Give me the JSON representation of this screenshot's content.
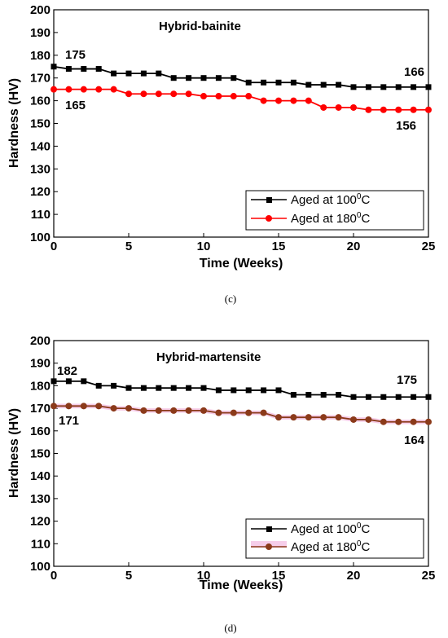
{
  "chart_data": [
    {
      "type": "line",
      "title": "Hybrid-bainite",
      "caption": "(c)",
      "xlabel": "Time (Weeks)",
      "ylabel": "Hardness (HV)",
      "xlim": [
        0,
        25
      ],
      "ylim": [
        100,
        200
      ],
      "xticks": [
        "0",
        "5",
        "10",
        "15",
        "20",
        "25"
      ],
      "yticks": [
        "100",
        "110",
        "120",
        "130",
        "140",
        "150",
        "160",
        "170",
        "180",
        "190",
        "200"
      ],
      "x": [
        0,
        1,
        2,
        3,
        4,
        5,
        6,
        7,
        8,
        9,
        10,
        11,
        12,
        13,
        14,
        15,
        16,
        17,
        18,
        19,
        20,
        21,
        22,
        23,
        24,
        25
      ],
      "series": [
        {
          "name": "Aged at 100°C",
          "legend_base": "Aged at 100",
          "legend_sup": "0",
          "legend_tail": "C",
          "color": "#000000",
          "marker": "square",
          "values": [
            175,
            174,
            174,
            174,
            172,
            172,
            172,
            172,
            170,
            170,
            170,
            170,
            170,
            168,
            168,
            168,
            168,
            167,
            167,
            167,
            166,
            166,
            166,
            166,
            166,
            166
          ]
        },
        {
          "name": "Aged at 180°C",
          "legend_base": "Aged at 180",
          "legend_sup": "0",
          "legend_tail": "C",
          "color": "#ff0000",
          "marker": "circle",
          "values": [
            165,
            165,
            165,
            165,
            165,
            163,
            163,
            163,
            163,
            163,
            162,
            162,
            162,
            162,
            160,
            160,
            160,
            160,
            157,
            157,
            157,
            156,
            156,
            156,
            156,
            156
          ]
        }
      ],
      "annotations": [
        "175",
        "165",
        "166",
        "156"
      ],
      "legend_position": "bottom-right",
      "grid": false
    },
    {
      "type": "line",
      "title": "Hybrid-martensite",
      "caption": "(d)",
      "xlabel": "Time (Weeks)",
      "ylabel": "Hardness (HV)",
      "xlim": [
        0,
        25
      ],
      "ylim": [
        100,
        200
      ],
      "xticks": [
        "0",
        "5",
        "10",
        "15",
        "20",
        "25"
      ],
      "yticks": [
        "100",
        "110",
        "120",
        "130",
        "140",
        "150",
        "160",
        "170",
        "180",
        "190",
        "200"
      ],
      "x": [
        0,
        1,
        2,
        3,
        4,
        5,
        6,
        7,
        8,
        9,
        10,
        11,
        12,
        13,
        14,
        15,
        16,
        17,
        18,
        19,
        20,
        21,
        22,
        23,
        24,
        25
      ],
      "series": [
        {
          "name": "Aged at 100°C",
          "legend_base": "Aged at 100",
          "legend_sup": "0",
          "legend_tail": "C",
          "color": "#000000",
          "marker": "square",
          "values": [
            182,
            182,
            182,
            180,
            180,
            179,
            179,
            179,
            179,
            179,
            179,
            178,
            178,
            178,
            178,
            178,
            176,
            176,
            176,
            176,
            175,
            175,
            175,
            175,
            175,
            175
          ]
        },
        {
          "name": "Aged at 180°C",
          "legend_base": "Aged at 180",
          "legend_sup": "0",
          "legend_tail": "C",
          "color": "#8b3a1a",
          "marker": "circle",
          "band_color": "#f2b8e0",
          "values": [
            171,
            171,
            171,
            171,
            170,
            170,
            169,
            169,
            169,
            169,
            169,
            168,
            168,
            168,
            168,
            166,
            166,
            166,
            166,
            166,
            165,
            165,
            164,
            164,
            164,
            164
          ]
        }
      ],
      "annotations": [
        "182",
        "171",
        "175",
        "164"
      ],
      "legend_position": "bottom-right",
      "grid": false
    }
  ]
}
